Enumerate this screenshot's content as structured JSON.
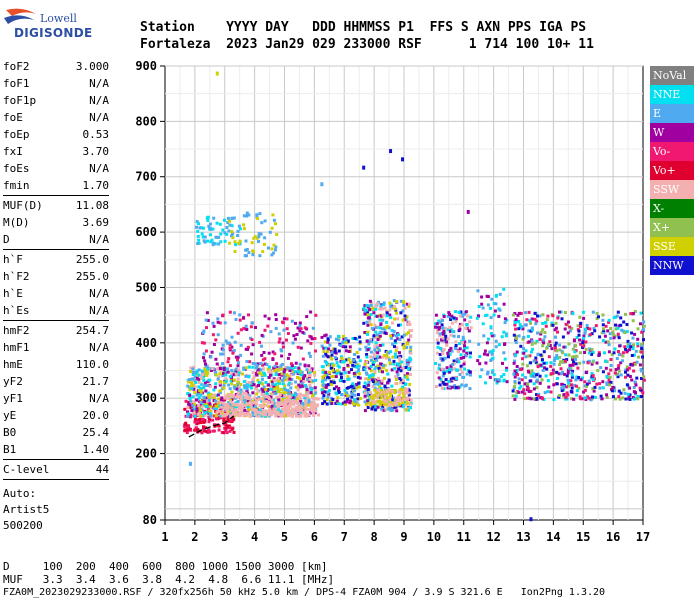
{
  "logo": {
    "top": "Lowell",
    "bottom": "DIGISONDE"
  },
  "header": {
    "line1": "Station    YYYY DAY   DDD HHMMSS P1  FFS S AXN PPS IGA PS",
    "line2": "Fortaleza  2023 Jan29 029 233000 RSF      1 714 100 10+ 11"
  },
  "params": [
    [
      [
        "foF2",
        "3.000"
      ],
      [
        "foF1",
        "N/A"
      ],
      [
        "foF1p",
        "N/A"
      ],
      [
        "foE",
        "N/A"
      ],
      [
        "foEp",
        "0.53"
      ],
      [
        "fxI",
        "3.70"
      ],
      [
        "foEs",
        "N/A"
      ],
      [
        "fmin",
        "1.70"
      ]
    ],
    [
      [
        "MUF(D)",
        "11.08"
      ],
      [
        "M(D)",
        "3.69"
      ],
      [
        "D",
        "N/A"
      ]
    ],
    [
      [
        "h`F",
        "255.0"
      ],
      [
        "h`F2",
        "255.0"
      ],
      [
        "h`E",
        "N/A"
      ],
      [
        "h`Es",
        "N/A"
      ]
    ],
    [
      [
        "hmF2",
        "254.7"
      ],
      [
        "hmF1",
        "N/A"
      ],
      [
        "hmE",
        "110.0"
      ],
      [
        "yF2",
        "21.7"
      ],
      [
        "yF1",
        "N/A"
      ],
      [
        "yE",
        "20.0"
      ],
      [
        "B0",
        "25.4"
      ],
      [
        "B1",
        "1.40"
      ]
    ],
    [
      [
        "C-level",
        "44"
      ]
    ]
  ],
  "auto": {
    "l1": "Auto:",
    "l2": "Artist5",
    "l3": "500200"
  },
  "legend": [
    {
      "label": "NoVal",
      "color": "#808080"
    },
    {
      "label": "NNE",
      "color": "#00e0f0"
    },
    {
      "label": "E",
      "color": "#50aaf0"
    },
    {
      "label": "W",
      "color": "#a000a0"
    },
    {
      "label": "Vo-",
      "color": "#f01870"
    },
    {
      "label": "Vo+",
      "color": "#e00030"
    },
    {
      "label": "SSW",
      "color": "#f4b0b0"
    },
    {
      "label": "X-",
      "color": "#008000"
    },
    {
      "label": "X+",
      "color": "#90c050"
    },
    {
      "label": "SSE",
      "color": "#d0d000"
    },
    {
      "label": "NNW",
      "color": "#1010d0"
    }
  ],
  "bottom": {
    "row1": "D     100  200  400  600  800 1000 1500 3000 [km]",
    "row2": "MUF   3.3  3.4  3.6  3.8  4.2  4.8  6.6 11.1 [MHz]",
    "row3": "FZA0M_2023029233000.RSF / 320fx256h 50 kHz 5.0 km / DPS-4 FZA0M 904 / 3.9 S 321.6 E   Ion2Png 1.3.20"
  },
  "chart_data": {
    "type": "scatter",
    "x_range": [
      1,
      17
    ],
    "y_range": [
      80,
      900
    ],
    "x_ticks": [
      1,
      2,
      3,
      4,
      5,
      6,
      7,
      8,
      9,
      10,
      11,
      12,
      13,
      14,
      15,
      16,
      17
    ],
    "y_ticks": [
      80,
      200,
      300,
      400,
      500,
      600,
      700,
      800,
      900
    ],
    "grid": true,
    "trace": [
      [
        1.8,
        230
      ],
      [
        2.2,
        242
      ],
      [
        2.6,
        250
      ],
      [
        3.0,
        255
      ],
      [
        3.3,
        268
      ]
    ],
    "clusters": [
      {
        "x": [
          1.6,
          3.3
        ],
        "y": [
          240,
          300
        ],
        "colors": [
          "#e00030",
          "#f01870"
        ],
        "n": 180
      },
      {
        "x": [
          1.7,
          6.0
        ],
        "y": [
          270,
          360
        ],
        "colors": [
          "#50aaf0",
          "#00e0f0",
          "#a000a0",
          "#f4b0b0",
          "#d0d000"
        ],
        "n": 900
      },
      {
        "x": [
          2.8,
          6.1
        ],
        "y": [
          270,
          310
        ],
        "colors": [
          "#f4b0b0"
        ],
        "n": 250
      },
      {
        "x": [
          2.2,
          6.0
        ],
        "y": [
          360,
          460
        ],
        "colors": [
          "#a000a0",
          "#50aaf0",
          "#f01870"
        ],
        "n": 180
      },
      {
        "x": [
          6.2,
          7.5
        ],
        "y": [
          290,
          420
        ],
        "colors": [
          "#50aaf0",
          "#00e0f0",
          "#a000a0",
          "#1010d0",
          "#d0d000"
        ],
        "n": 260
      },
      {
        "x": [
          7.6,
          9.2
        ],
        "y": [
          280,
          480
        ],
        "colors": [
          "#50aaf0",
          "#00e0f0",
          "#1010d0",
          "#a000a0",
          "#d0d000",
          "#f4b0b0"
        ],
        "n": 500
      },
      {
        "x": [
          7.8,
          9.1
        ],
        "y": [
          290,
          320
        ],
        "colors": [
          "#f4b0b0",
          "#d0d000"
        ],
        "n": 120
      },
      {
        "x": [
          10.0,
          11.2
        ],
        "y": [
          320,
          460
        ],
        "colors": [
          "#1010d0",
          "#50aaf0",
          "#00e0f0",
          "#a000a0",
          "#f4b0b0"
        ],
        "n": 220
      },
      {
        "x": [
          11.4,
          12.4
        ],
        "y": [
          330,
          500
        ],
        "colors": [
          "#50aaf0",
          "#00e0f0",
          "#a000a0"
        ],
        "n": 90
      },
      {
        "x": [
          12.6,
          17.0
        ],
        "y": [
          300,
          460
        ],
        "colors": [
          "#50aaf0",
          "#a000a0",
          "#1010d0",
          "#00e0f0",
          "#90c050",
          "#f01870"
        ],
        "n": 650
      },
      {
        "x": [
          2.0,
          3.6
        ],
        "y": [
          580,
          630
        ],
        "colors": [
          "#50aaf0",
          "#00e0f0"
        ],
        "n": 60
      },
      {
        "x": [
          3.1,
          4.7
        ],
        "y": [
          560,
          640
        ],
        "colors": [
          "#d0d000",
          "#50aaf0"
        ],
        "n": 60
      }
    ],
    "outliers": [
      [
        1.8,
        185,
        "#50aaf0"
      ],
      [
        2.7,
        890,
        "#d0d000"
      ],
      [
        8.5,
        750,
        "#1010d0"
      ],
      [
        8.9,
        735,
        "#1010d0"
      ],
      [
        7.6,
        720,
        "#1010d0"
      ],
      [
        11.1,
        640,
        "#a000a0"
      ],
      [
        13.2,
        85,
        "#1010d0"
      ],
      [
        6.2,
        690,
        "#50aaf0"
      ]
    ]
  }
}
